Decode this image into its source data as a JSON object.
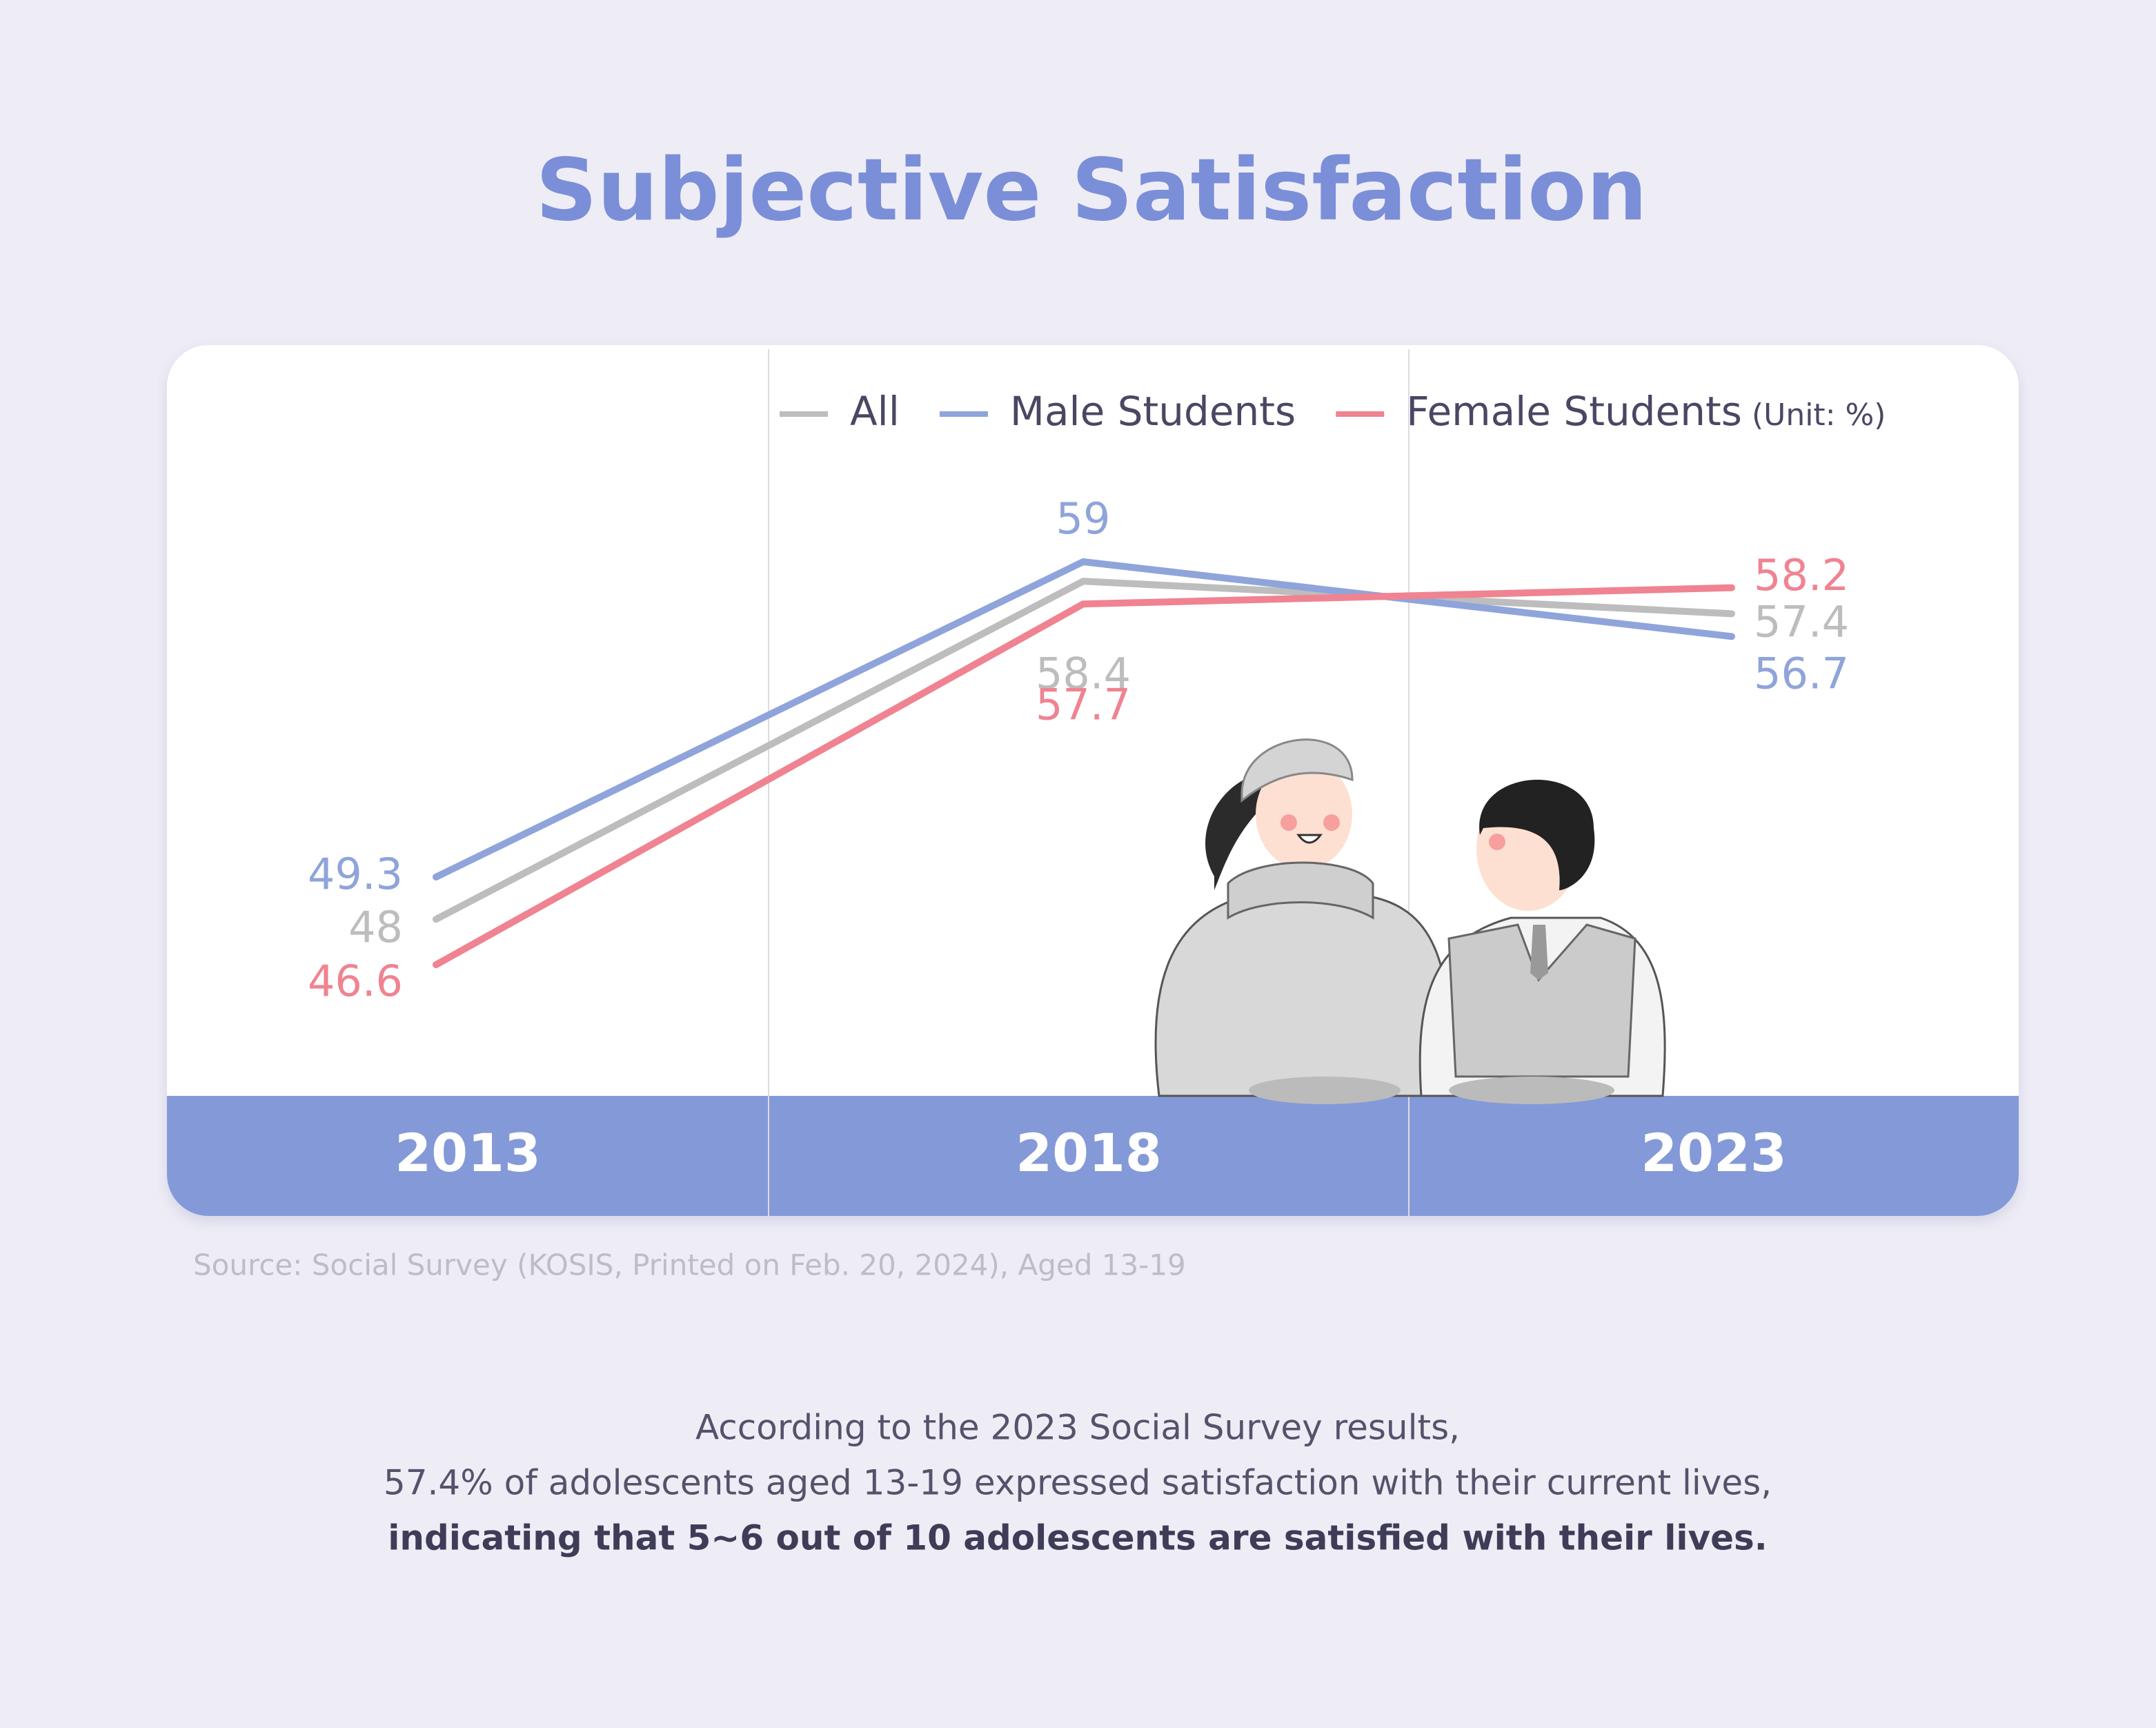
{
  "chart_data": {
    "type": "line",
    "title": "Subjective Satisfaction",
    "unit": "(Unit: %)",
    "categories": [
      "2013",
      "2018",
      "2023"
    ],
    "series": [
      {
        "name": "All",
        "color": "#bdbdbd",
        "values": [
          48,
          58.4,
          57.4
        ]
      },
      {
        "name": "Male Students",
        "color": "#8fa4da",
        "values": [
          49.3,
          59,
          56.7
        ]
      },
      {
        "name": "Female Students",
        "color": "#f08391",
        "values": [
          46.6,
          57.7,
          58.2
        ]
      }
    ],
    "source": "Source: Social Survey (KOSIS, Printed on Feb. 20, 2024), Aged 13-19",
    "summary": [
      "According to the 2023 Social Survey results,",
      "57.4% of adolescents aged 13-19 expressed satisfaction with their current lives,",
      "indicating that 5~6 out of 10 adolescents are satisfied with their lives."
    ]
  }
}
